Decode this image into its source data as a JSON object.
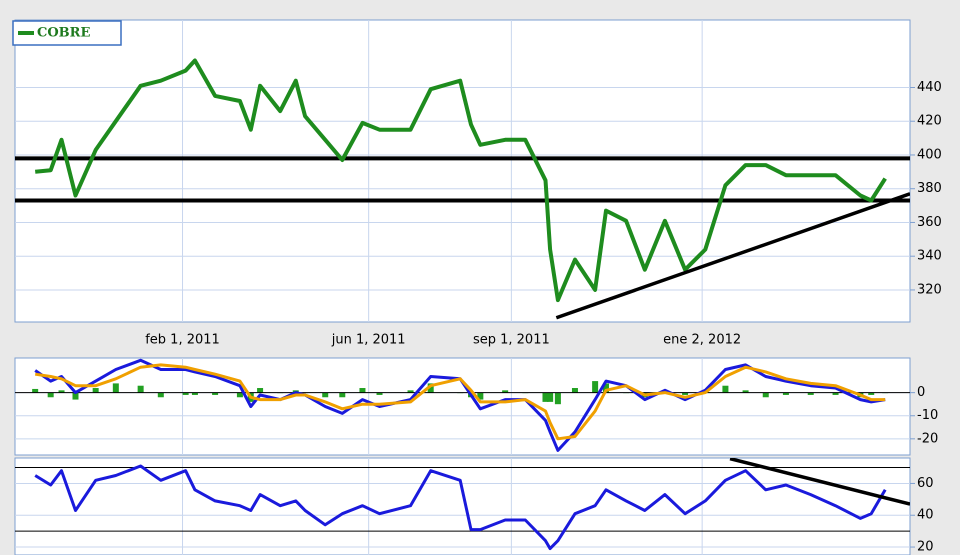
{
  "chart_data": [
    {
      "type": "line",
      "x": [
        "2010-10-29",
        "2010-11-08",
        "2010-11-15",
        "2010-11-24",
        "2010-12-07",
        "2010-12-20",
        "2011-01-05",
        "2011-01-18",
        "2011-02-03",
        "2011-02-09",
        "2011-02-22",
        "2011-03-10",
        "2011-03-17",
        "2011-03-23",
        "2011-04-05",
        "2011-04-15",
        "2011-04-21",
        "2011-05-04",
        "2011-05-15",
        "2011-05-28",
        "2011-06-08",
        "2011-06-28",
        "2011-07-11",
        "2011-07-30",
        "2011-08-06",
        "2011-08-12",
        "2011-08-28",
        "2011-09-10",
        "2011-09-23",
        "2011-09-26",
        "2011-10-01",
        "2011-10-12",
        "2011-10-25",
        "2011-11-01",
        "2011-11-14",
        "2011-11-26",
        "2011-12-09",
        "2011-12-22",
        "2012-01-04",
        "2012-01-17",
        "2012-01-30",
        "2012-02-12",
        "2012-02-25",
        "2012-03-12",
        "2012-03-28",
        "2012-04-13",
        "2012-04-20",
        "2012-04-29"
      ],
      "xlim": [
        "2010-10-16",
        "2012-05-15"
      ],
      "xticks": [
        {
          "value": "2011-02-01",
          "label": "feb 1, 2011"
        },
        {
          "value": "2011-06-01",
          "label": "jun 1, 2011"
        },
        {
          "value": "2011-09-01",
          "label": "sep 1, 2011"
        },
        {
          "value": "2012-01-02",
          "label": "ene 2, 2012"
        }
      ],
      "ylim": [
        301,
        480
      ],
      "yticks": [
        320,
        340,
        360,
        380,
        400,
        420,
        440
      ],
      "grid": true,
      "legend": "upper left",
      "series": [
        {
          "name": "COBRE",
          "color": "#1e8c1e",
          "values": [
            390,
            391,
            409,
            376,
            403,
            420,
            441,
            444,
            450,
            456,
            435,
            432,
            415,
            441,
            426,
            444,
            423,
            409,
            397,
            419,
            415,
            415,
            439,
            444,
            418,
            406,
            409,
            409,
            385,
            344,
            314,
            338,
            320,
            367,
            361,
            332,
            361,
            332,
            344,
            382,
            394,
            394,
            388,
            388,
            388,
            376,
            373,
            386
          ]
        }
      ],
      "hlines": [
        398,
        373
      ],
      "trendline": {
        "x": [
          "2011-09-30",
          "2012-05-15"
        ],
        "values": [
          303.5,
          377
        ]
      }
    },
    {
      "type": "line",
      "ylim": [
        -27,
        15
      ],
      "yticks": [
        0,
        -10,
        -20
      ],
      "grid": true,
      "series": [
        {
          "color": "#1a1adc",
          "values": [
            9.6,
            5,
            7,
            0,
            5,
            10,
            14,
            10,
            10,
            9,
            7,
            3,
            -6,
            -1,
            -3,
            0,
            -1,
            -6,
            -9,
            -3,
            -6,
            -3,
            7,
            6,
            -1,
            -7,
            -3,
            -3,
            -12,
            -17,
            -25,
            -17,
            -3,
            5,
            3,
            -3,
            1,
            -3,
            1,
            10,
            12,
            7,
            5,
            3,
            2,
            -3,
            -4,
            -3
          ]
        },
        {
          "color": "#f0a000",
          "values": [
            8,
            7,
            6,
            3,
            3,
            6,
            11,
            12,
            11,
            10,
            8,
            5,
            -2,
            -3,
            -3,
            -1,
            -1,
            -4,
            -7,
            -5,
            -5,
            -4,
            3,
            6,
            1,
            -4,
            -4,
            -3,
            -8,
            -13,
            -20,
            -19,
            -8,
            1,
            3,
            -1,
            0,
            -2,
            0,
            7,
            11,
            9,
            6,
            4,
            3,
            -1,
            -3,
            -3
          ]
        },
        {
          "color": "#22a022",
          "style": "bar",
          "values": [
            1.6,
            -2,
            1,
            -3,
            2,
            4,
            3,
            -2,
            -1,
            -1,
            -1,
            -2,
            -4,
            2,
            0,
            1,
            0,
            -2,
            -2,
            2,
            -1,
            1,
            4,
            0,
            -2,
            -3,
            1,
            0,
            -4,
            -4,
            -5,
            2,
            5,
            4,
            0,
            -2,
            1,
            -1,
            1,
            3,
            1,
            -2,
            -1,
            -1,
            -1,
            -2,
            -1,
            0
          ]
        }
      ],
      "hlines": [
        0
      ]
    },
    {
      "type": "line",
      "ylim": [
        15,
        76
      ],
      "yticks": [
        20,
        40,
        60
      ],
      "grid": true,
      "series": [
        {
          "color": "#1a1adc",
          "values": [
            65,
            59,
            68,
            43,
            62,
            65,
            71,
            62,
            68,
            56,
            49,
            46,
            43,
            53,
            46,
            49,
            43,
            34,
            41,
            46,
            41,
            46,
            68,
            62,
            31,
            31,
            37,
            37,
            24,
            19,
            24,
            41,
            46,
            56,
            49,
            43,
            53,
            41,
            49,
            62,
            68,
            56,
            59,
            53,
            46,
            38,
            41,
            56
          ]
        }
      ],
      "hlines": [
        70,
        30
      ],
      "trendline": {
        "x": [
          "2012-01-20",
          "2012-05-15"
        ],
        "values": [
          75.6,
          47
        ]
      }
    }
  ]
}
